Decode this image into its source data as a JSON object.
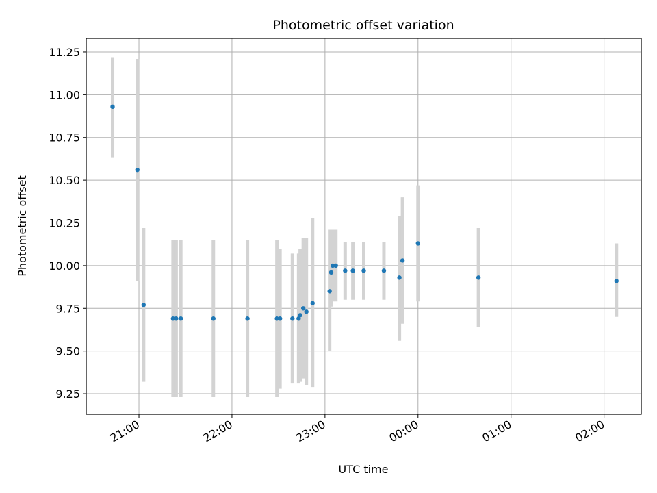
{
  "chart_data": {
    "type": "scatter",
    "title": "Photometric offset variation",
    "xlabel": "UTC time",
    "ylabel": "Photometric offset",
    "x_tick_labels": [
      "21:00",
      "22:00",
      "23:00",
      "00:00",
      "01:00",
      "02:00"
    ],
    "y_tick_labels": [
      "9.25",
      "9.50",
      "9.75",
      "10.00",
      "10.25",
      "10.50",
      "10.75",
      "11.00",
      "11.25"
    ],
    "ylim": [
      9.13,
      11.33
    ],
    "xlim": [
      "20:26",
      "02:24"
    ],
    "grid": true,
    "colors": {
      "marker": "#1f77b4",
      "errorbar": "#d3d3d3",
      "grid": "#b0b0b0"
    },
    "points": [
      {
        "x": "20:43",
        "y": 10.93,
        "err_low": 10.63,
        "err_high": 11.22
      },
      {
        "x": "20:59",
        "y": 10.56,
        "err_low": 9.91,
        "err_high": 11.21
      },
      {
        "x": "21:03",
        "y": 9.77,
        "err_low": 9.32,
        "err_high": 10.22
      },
      {
        "x": "21:22",
        "y": 9.69,
        "err_low": 9.23,
        "err_high": 10.15
      },
      {
        "x": "21:24",
        "y": 9.69,
        "err_low": 9.23,
        "err_high": 10.15
      },
      {
        "x": "21:27",
        "y": 9.69,
        "err_low": 9.23,
        "err_high": 10.15
      },
      {
        "x": "21:48",
        "y": 9.69,
        "err_low": 9.23,
        "err_high": 10.15
      },
      {
        "x": "22:10",
        "y": 9.69,
        "err_low": 9.23,
        "err_high": 10.15
      },
      {
        "x": "22:29",
        "y": 9.69,
        "err_low": 9.23,
        "err_high": 10.15
      },
      {
        "x": "22:31",
        "y": 9.69,
        "err_low": 9.28,
        "err_high": 10.1
      },
      {
        "x": "22:39",
        "y": 9.69,
        "err_low": 9.31,
        "err_high": 10.07
      },
      {
        "x": "22:43",
        "y": 9.69,
        "err_low": 9.31,
        "err_high": 10.07
      },
      {
        "x": "22:44",
        "y": 9.71,
        "err_low": 9.32,
        "err_high": 10.1
      },
      {
        "x": "22:46",
        "y": 9.75,
        "err_low": 9.34,
        "err_high": 10.16
      },
      {
        "x": "22:48",
        "y": 9.73,
        "err_low": 9.3,
        "err_high": 10.16
      },
      {
        "x": "22:52",
        "y": 9.78,
        "err_low": 9.29,
        "err_high": 10.28
      },
      {
        "x": "23:03",
        "y": 9.85,
        "err_low": 9.5,
        "err_high": 10.21
      },
      {
        "x": "23:04",
        "y": 9.96,
        "err_low": 9.76,
        "err_high": 10.21
      },
      {
        "x": "23:05",
        "y": 10.0,
        "err_low": 9.79,
        "err_high": 10.21
      },
      {
        "x": "23:07",
        "y": 10.0,
        "err_low": 9.79,
        "err_high": 10.21
      },
      {
        "x": "23:13",
        "y": 9.97,
        "err_low": 9.8,
        "err_high": 10.14
      },
      {
        "x": "23:18",
        "y": 9.97,
        "err_low": 9.8,
        "err_high": 10.14
      },
      {
        "x": "23:25",
        "y": 9.97,
        "err_low": 9.8,
        "err_high": 10.14
      },
      {
        "x": "23:38",
        "y": 9.97,
        "err_low": 9.8,
        "err_high": 10.14
      },
      {
        "x": "23:48",
        "y": 9.93,
        "err_low": 9.56,
        "err_high": 10.29
      },
      {
        "x": "23:50",
        "y": 10.03,
        "err_low": 9.66,
        "err_high": 10.4
      },
      {
        "x": "00:00",
        "y": 10.13,
        "err_low": 9.79,
        "err_high": 10.47
      },
      {
        "x": "00:39",
        "y": 9.93,
        "err_low": 9.64,
        "err_high": 10.22
      },
      {
        "x": "02:08",
        "y": 9.91,
        "err_low": 9.7,
        "err_high": 10.13
      }
    ]
  }
}
